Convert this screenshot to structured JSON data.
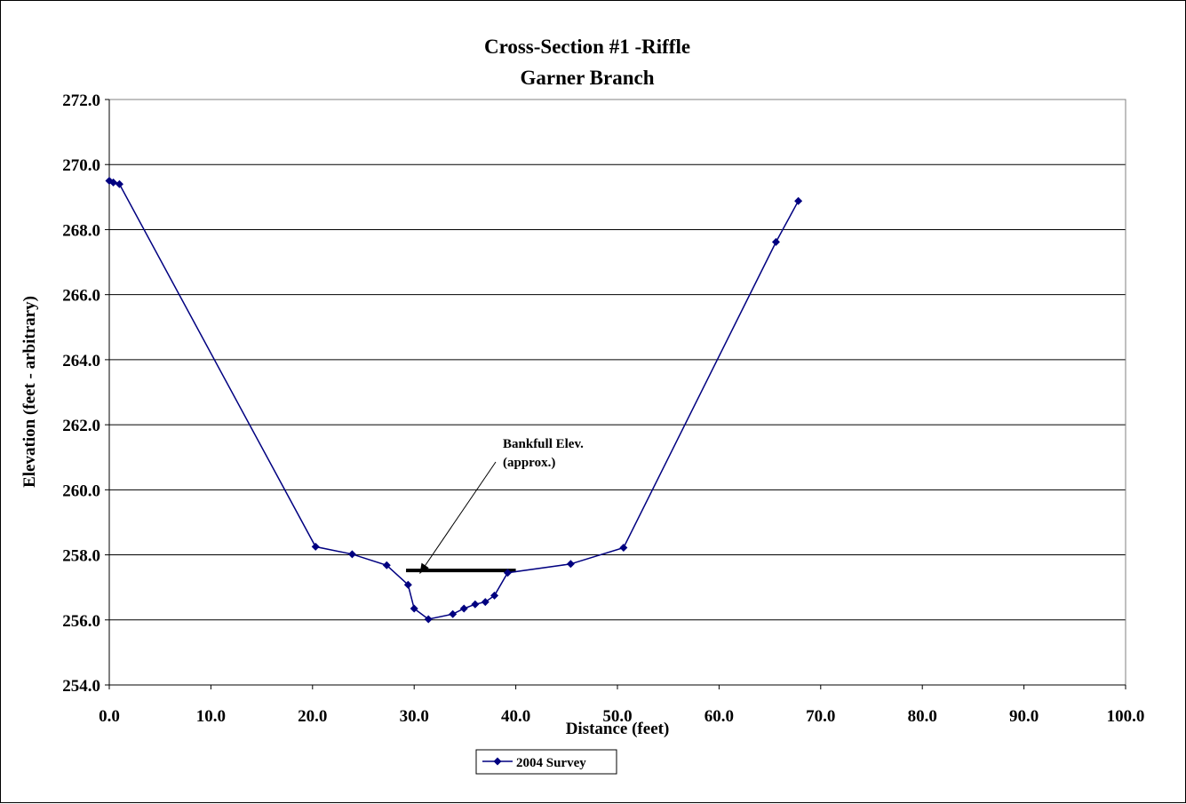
{
  "chart_data": {
    "type": "line",
    "title": [
      "Cross-Section #1 -Riffle",
      "Garner Branch"
    ],
    "xlabel": "Distance (feet)",
    "ylabel": "Elevation (feet - arbitrary)",
    "xlim": [
      0,
      100
    ],
    "ylim": [
      254,
      272
    ],
    "x_ticks": [
      "0.0",
      "10.0",
      "20.0",
      "30.0",
      "40.0",
      "50.0",
      "60.0",
      "70.0",
      "80.0",
      "90.0",
      "100.0"
    ],
    "y_ticks": [
      "254.0",
      "256.0",
      "258.0",
      "260.0",
      "262.0",
      "264.0",
      "266.0",
      "268.0",
      "270.0",
      "272.0"
    ],
    "grid": "horizontal",
    "legend_position": "bottom-center",
    "series": [
      {
        "name": "2004 Survey",
        "color": "#000080",
        "marker": "diamond",
        "x": [
          0.0,
          0.4,
          1.0,
          20.3,
          23.9,
          27.3,
          29.4,
          30.0,
          31.4,
          33.8,
          34.9,
          36.0,
          37.0,
          37.9,
          39.2,
          45.4,
          50.6,
          65.6,
          67.8
        ],
        "y": [
          269.5,
          269.45,
          269.4,
          258.25,
          258.02,
          257.68,
          257.08,
          256.35,
          256.02,
          256.18,
          256.35,
          256.48,
          256.55,
          256.75,
          257.45,
          257.72,
          258.22,
          267.62,
          268.88
        ]
      }
    ],
    "annotations": [
      {
        "type": "reference_line",
        "label": "Bankfull Elev.\n(approx.)",
        "x_start": 29.2,
        "x_end": 40.0,
        "y": 257.52,
        "color": "#000000",
        "arrow_target": [
          29.5,
          257.7
        ]
      }
    ]
  }
}
